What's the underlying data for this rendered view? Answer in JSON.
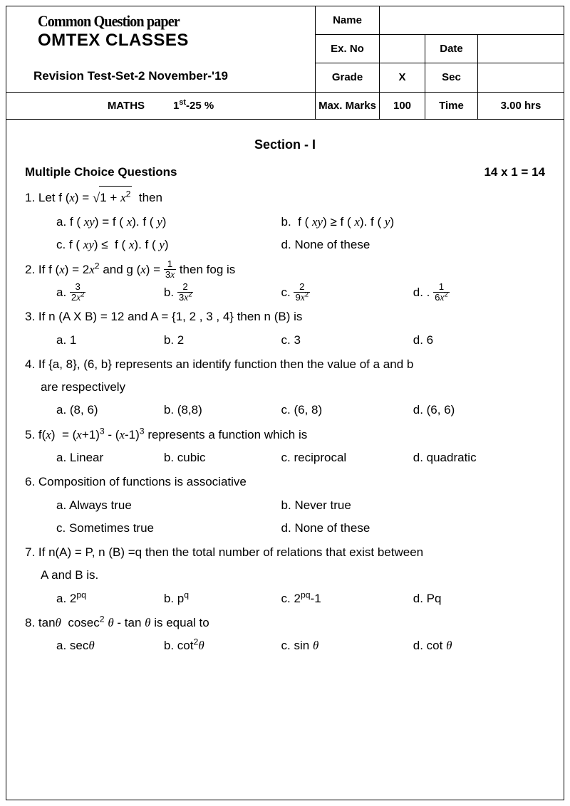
{
  "header": {
    "title_line1": "Common Question paper",
    "title_line2": "OMTEX CLASSES",
    "revision": "Revision Test-Set-2 November-'19",
    "labels": {
      "name": "Name",
      "exno": "Ex. No",
      "date": "Date",
      "grade": "Grade",
      "sec": "Sec",
      "maxmarks": "Max. Marks",
      "time": "Time"
    },
    "values": {
      "grade": "X",
      "maxmarks": "100",
      "time": "3.00 hrs"
    },
    "subject": "MATHS",
    "portion_pre": "1",
    "portion_sup": "st",
    "portion_post": "-25 %"
  },
  "section_title": "Section - I",
  "mcq_heading": "Multiple Choice Questions",
  "marks_scheme": "14 x 1 = 14",
  "q1": {
    "opt_b": "b.  f ( ",
    "opt_d": "d. None of these"
  },
  "q3": {
    "stem": "3. If n (A X B) = 12 and A = {1, 2 , 3 , 4} then n (B) is",
    "a": "a. 1",
    "b": "b. 2",
    "c": "c. 3",
    "d": "d. 6"
  },
  "q4": {
    "stem": "4. If {a, 8}, (6, b} represents an identify function then the value of a and b",
    "stem2": "are respectively",
    "a": "a. (8, 6)",
    "b": "b. (8,8)",
    "c": "c. (6, 8)",
    "d": "d. (6, 6)"
  },
  "q5": {
    "a": "a. Linear",
    "b": "b. cubic",
    "c": "c. reciprocal",
    "d": "d. quadratic"
  },
  "q6": {
    "stem": "6. Composition of functions is associative",
    "a": "a. Always true",
    "b": "b. Never true",
    "c": "c. Sometimes true",
    "d": "d. None of these"
  },
  "q7": {
    "stem": "7. If n(A) = P, n (B) =q then the total number of relations that exist between",
    "stem2": "A and B is."
  }
}
